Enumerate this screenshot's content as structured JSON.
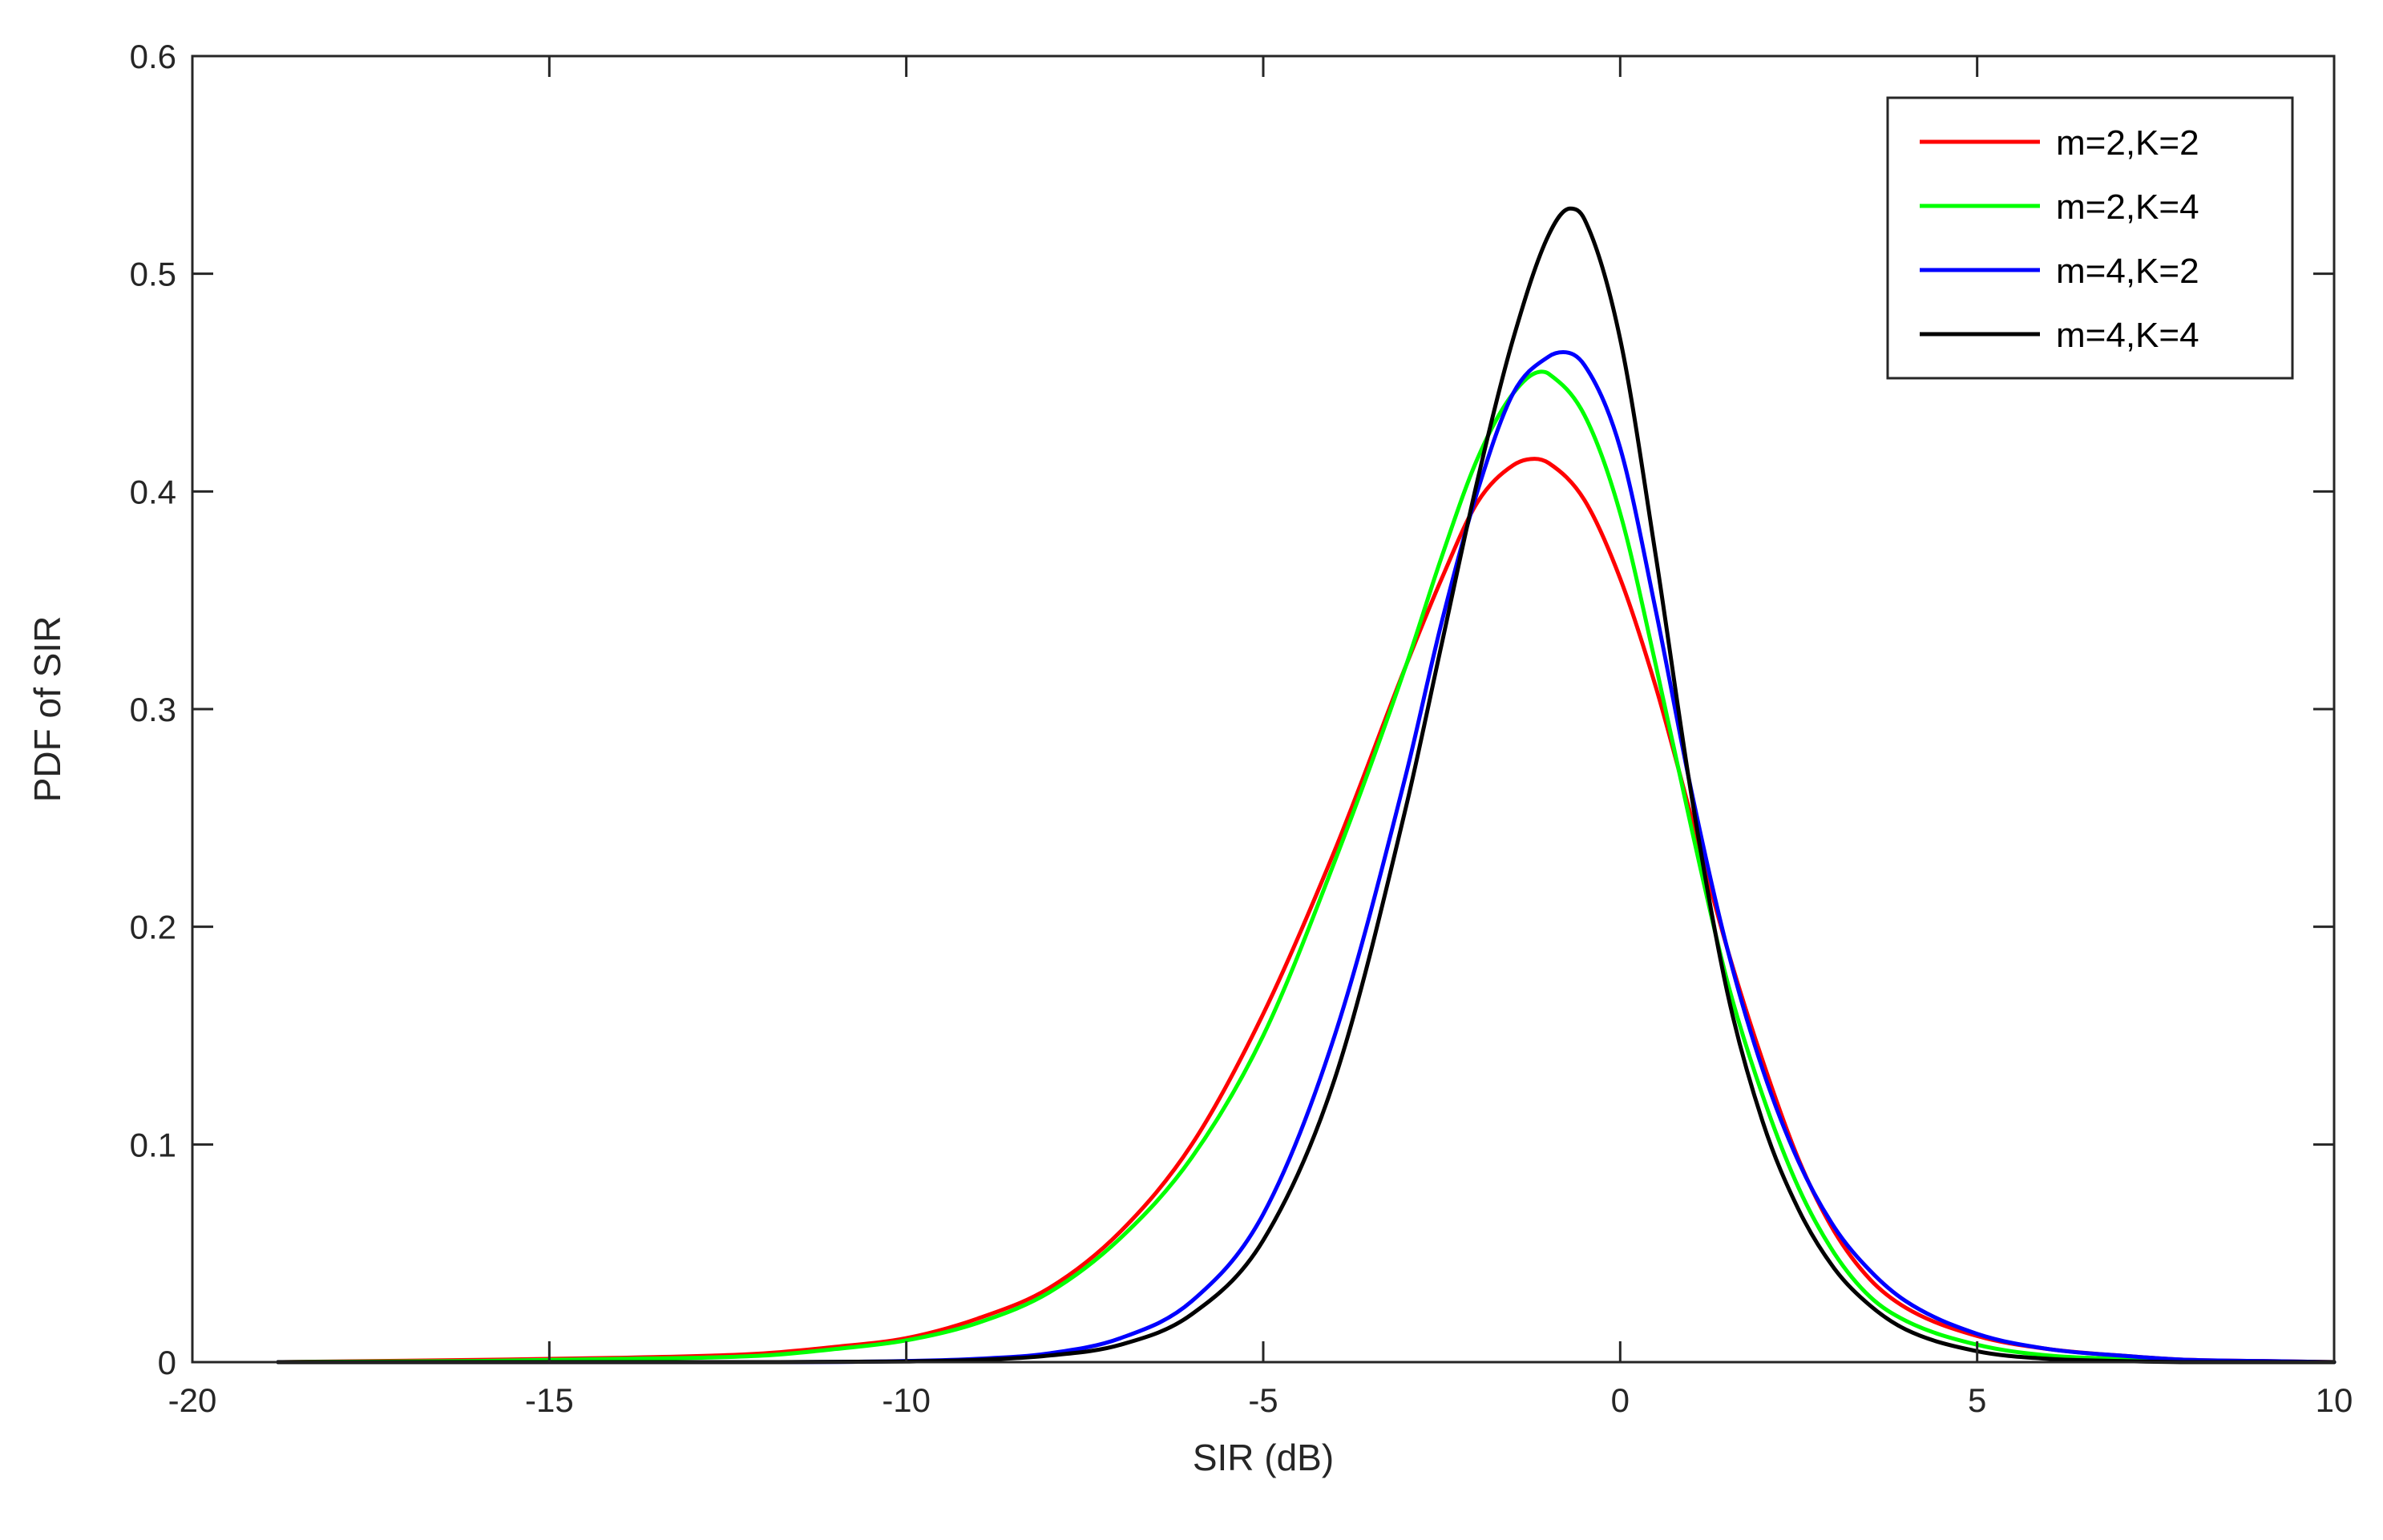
{
  "chart_data": {
    "type": "line",
    "title": "",
    "xlabel": "SIR (dB)",
    "ylabel": "PDF of SIR",
    "xlim": [
      -20,
      10
    ],
    "ylim": [
      0,
      0.6
    ],
    "xticks": [
      -20,
      -15,
      -10,
      -5,
      0,
      5,
      10
    ],
    "xtick_labels": [
      "-20",
      "-15",
      "-10",
      "-5",
      "0",
      "5",
      "10"
    ],
    "yticks": [
      0,
      0.1,
      0.2,
      0.3,
      0.4,
      0.5,
      0.6
    ],
    "ytick_labels": [
      "0",
      "0.1",
      "0.2",
      "0.3",
      "0.4",
      "0.5",
      "0.6"
    ],
    "grid": false,
    "legend_position": "top-right",
    "series": [
      {
        "name": "m=2,K=2",
        "color": "#ff0000",
        "x": [
          -18.8,
          -16,
          -14,
          -12,
          -11,
          -10,
          -9,
          -8,
          -7,
          -6,
          -5,
          -4,
          -3,
          -2.5,
          -2,
          -1.5,
          -1.2,
          -1,
          -0.5,
          0,
          0.5,
          1,
          1.5,
          2,
          2.5,
          3,
          3.5,
          4,
          5,
          6,
          7,
          8,
          9,
          10
        ],
        "y": [
          0.0,
          0.001,
          0.002,
          0.004,
          0.007,
          0.011,
          0.02,
          0.034,
          0.06,
          0.1,
          0.16,
          0.235,
          0.32,
          0.36,
          0.395,
          0.412,
          0.415,
          0.413,
          0.396,
          0.36,
          0.31,
          0.25,
          0.19,
          0.138,
          0.093,
          0.06,
          0.038,
          0.025,
          0.012,
          0.006,
          0.003,
          0.001,
          0.0005,
          0.0
        ]
      },
      {
        "name": "m=2,K=4",
        "color": "#00ff00",
        "x": [
          -18.8,
          -16,
          -14,
          -12,
          -11,
          -10,
          -9,
          -8,
          -7,
          -6,
          -5,
          -4,
          -3,
          -2.5,
          -2,
          -1.5,
          -1.1,
          -1,
          -0.5,
          0,
          0.5,
          1,
          1.5,
          2,
          2.5,
          3,
          3.5,
          4,
          5,
          6,
          7,
          8,
          9,
          10
        ],
        "y": [
          0.0,
          0.0005,
          0.0015,
          0.003,
          0.006,
          0.01,
          0.018,
          0.032,
          0.057,
          0.094,
          0.15,
          0.23,
          0.32,
          0.37,
          0.415,
          0.445,
          0.455,
          0.454,
          0.435,
          0.39,
          0.32,
          0.245,
          0.175,
          0.122,
          0.08,
          0.05,
          0.03,
          0.019,
          0.008,
          0.003,
          0.0015,
          0.0005,
          0.0,
          0.0
        ]
      },
      {
        "name": "m=4,K=2",
        "color": "#0000ff",
        "x": [
          -18.8,
          -14,
          -12,
          -10,
          -9,
          -8,
          -7,
          -6,
          -5,
          -4,
          -3,
          -2.5,
          -2,
          -1.5,
          -1,
          -0.8,
          -0.5,
          0,
          0.5,
          1,
          1.5,
          2,
          2.5,
          3,
          3.5,
          4,
          5,
          6,
          7,
          8,
          9,
          10
        ],
        "y": [
          0.0,
          0.0,
          0.0,
          0.0005,
          0.0015,
          0.004,
          0.011,
          0.028,
          0.068,
          0.15,
          0.27,
          0.34,
          0.4,
          0.445,
          0.462,
          0.464,
          0.458,
          0.42,
          0.345,
          0.262,
          0.19,
          0.134,
          0.092,
          0.062,
          0.042,
          0.028,
          0.013,
          0.006,
          0.003,
          0.001,
          0.0005,
          0.0
        ]
      },
      {
        "name": "m=4,K=4",
        "color": "#000000",
        "x": [
          -18.8,
          -14,
          -12,
          -10,
          -9,
          -8,
          -7,
          -6,
          -5,
          -4,
          -3,
          -2.5,
          -2,
          -1.5,
          -1,
          -0.7,
          -0.5,
          0,
          0.5,
          1,
          1.5,
          2,
          2.5,
          3,
          3.5,
          4,
          5,
          6,
          7,
          8,
          9,
          10
        ],
        "y": [
          0.0,
          0.0,
          0.0,
          0.0003,
          0.001,
          0.003,
          0.008,
          0.022,
          0.056,
          0.13,
          0.255,
          0.33,
          0.405,
          0.47,
          0.518,
          0.53,
          0.525,
          0.47,
          0.37,
          0.26,
          0.17,
          0.11,
          0.07,
          0.043,
          0.026,
          0.015,
          0.005,
          0.0015,
          0.0005,
          0.0,
          0.0,
          0.0
        ]
      }
    ]
  }
}
